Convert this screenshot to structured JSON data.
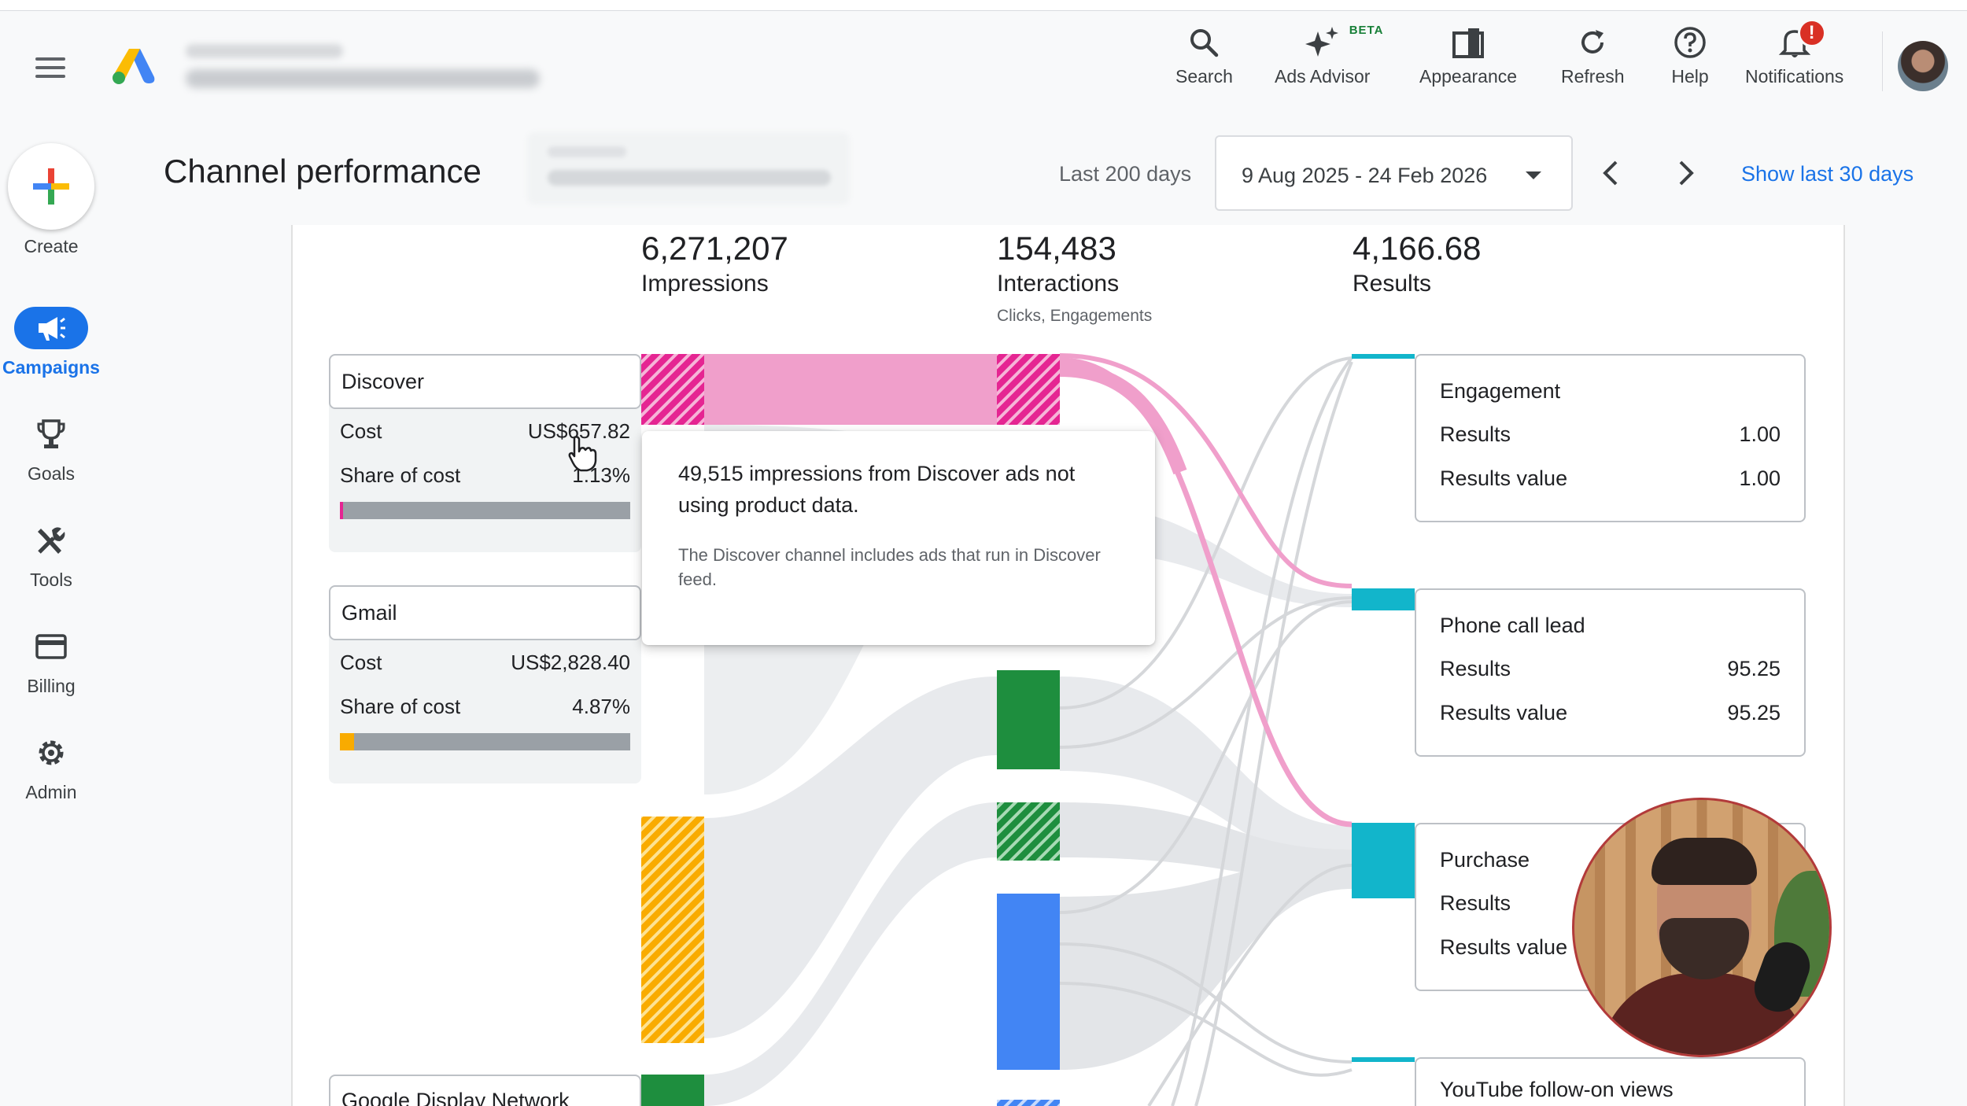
{
  "header": {
    "tools": [
      {
        "label": "Search",
        "icon": "search-icon"
      },
      {
        "label": "Ads Advisor",
        "icon": "sparkle-icon",
        "badge": "BETA"
      },
      {
        "label": "Appearance",
        "icon": "appearance-icon"
      },
      {
        "label": "Refresh",
        "icon": "refresh-icon"
      },
      {
        "label": "Help",
        "icon": "help-icon"
      },
      {
        "label": "Notifications",
        "icon": "bell-icon",
        "badge": "!"
      }
    ]
  },
  "nav": {
    "create": "Create",
    "items": [
      {
        "label": "Campaigns",
        "icon": "megaphone-icon",
        "active": true
      },
      {
        "label": "Goals",
        "icon": "trophy-icon"
      },
      {
        "label": "Tools",
        "icon": "tools-icon"
      },
      {
        "label": "Billing",
        "icon": "credit-card-icon"
      },
      {
        "label": "Admin",
        "icon": "gear-icon"
      }
    ]
  },
  "page": {
    "title": "Channel performance",
    "range_label": "Last 200 days",
    "date_range": "9 Aug 2025 - 24 Feb 2026",
    "show_last": "Show last 30 days"
  },
  "metrics": {
    "impressions": {
      "value": "6,271,207",
      "label": "Impressions"
    },
    "interactions": {
      "value": "154,483",
      "label": "Interactions",
      "sub": "Clicks, Engagements"
    },
    "results": {
      "value": "4,166.68",
      "label": "Results"
    }
  },
  "channels": [
    {
      "name": "Discover",
      "cost_label": "Cost",
      "cost": "US$657.82",
      "share_label": "Share of cost",
      "share": "1.13%",
      "share_fraction": 0.0113,
      "color": "#e52592"
    },
    {
      "name": "Gmail",
      "cost_label": "Cost",
      "cost": "US$2,828.40",
      "share_label": "Share of cost",
      "share": "4.87%",
      "share_fraction": 0.0487,
      "color": "#f9ab00"
    },
    {
      "name": "Google Display Network"
    }
  ],
  "results": [
    {
      "name": "Engagement",
      "results_label": "Results",
      "results": "1.00",
      "value_label": "Results value",
      "value": "1.00"
    },
    {
      "name": "Phone call lead",
      "results_label": "Results",
      "results": "95.25",
      "value_label": "Results value",
      "value": "95.25"
    },
    {
      "name": "Purchase",
      "results_label": "Results",
      "value_label": "Results value"
    },
    {
      "name": "YouTube follow-on views"
    }
  ],
  "tooltip": {
    "main": "49,515 impressions from Discover ads not using product data.",
    "note": "The Discover channel includes ads that run in Discover feed."
  },
  "colors": {
    "discover": "#e52592",
    "discover_light": "#f09fcb",
    "gmail": "#f9ab00",
    "display_green": "#1e8e3e",
    "youtube_blue": "#4285f4",
    "result_teal": "#12b5cb",
    "flow_grey": "#dadce0",
    "accent": "#1a73e8"
  }
}
